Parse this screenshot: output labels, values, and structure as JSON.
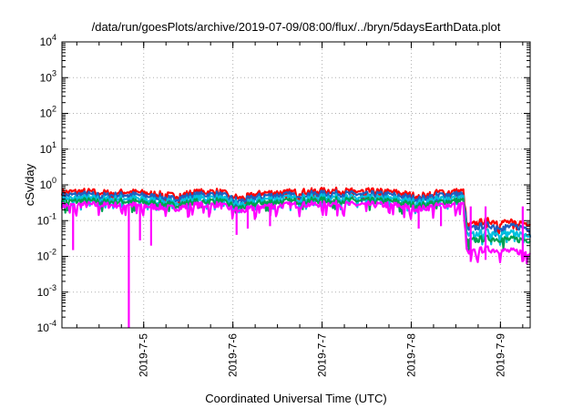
{
  "chart_data": {
    "type": "line",
    "title": "/data/run/goesPlots/archive/2019-07-09/08:00/flux/../bryn/5daysEarthData.plot",
    "xlabel": "Coordinated Universal Time (UTC)",
    "ylabel": "cSv/day",
    "y_scale": "log",
    "ylim": [
      0.0001,
      10000
    ],
    "y_ticks": [
      {
        "value": 0.0001,
        "base": "10",
        "exp": "-4"
      },
      {
        "value": 0.001,
        "base": "10",
        "exp": "-3"
      },
      {
        "value": 0.01,
        "base": "10",
        "exp": "-2"
      },
      {
        "value": 0.1,
        "base": "10",
        "exp": "-1"
      },
      {
        "value": 1,
        "base": "10",
        "exp": "0"
      },
      {
        "value": 10,
        "base": "10",
        "exp": "1"
      },
      {
        "value": 100,
        "base": "10",
        "exp": "2"
      },
      {
        "value": 1000,
        "base": "10",
        "exp": "3"
      },
      {
        "value": 10000,
        "base": "10",
        "exp": "4"
      }
    ],
    "xlim": [
      "2019-07-04T02:00",
      "2019-07-09T08:00"
    ],
    "x_ticks": [
      {
        "value": "2019-07-05T00:00",
        "label": "2019-7-5"
      },
      {
        "value": "2019-07-06T00:00",
        "label": "2019-7-6"
      },
      {
        "value": "2019-07-07T00:00",
        "label": "2019-7-7"
      },
      {
        "value": "2019-07-08T00:00",
        "label": "2019-7-8"
      },
      {
        "value": "2019-07-09T00:00",
        "label": "2019-7-9"
      }
    ],
    "grid": true,
    "x": [
      "2019-07-04T02:00",
      "2019-07-04T08:00",
      "2019-07-04T14:00",
      "2019-07-04T20:00",
      "2019-07-05T02:00",
      "2019-07-05T08:00",
      "2019-07-05T14:00",
      "2019-07-05T20:00",
      "2019-07-06T02:00",
      "2019-07-06T08:00",
      "2019-07-06T14:00",
      "2019-07-06T20:00",
      "2019-07-07T02:00",
      "2019-07-07T08:00",
      "2019-07-07T14:00",
      "2019-07-07T20:00",
      "2019-07-08T02:00",
      "2019-07-08T08:00",
      "2019-07-08T14:00",
      "2019-07-08T15:00",
      "2019-07-08T20:00",
      "2019-07-09T02:00",
      "2019-07-09T08:00"
    ],
    "series": [
      {
        "color": "#ff0000",
        "values": [
          0.62,
          0.66,
          0.6,
          0.64,
          0.58,
          0.5,
          0.62,
          0.66,
          0.42,
          0.6,
          0.62,
          0.65,
          0.7,
          0.66,
          0.66,
          0.62,
          0.48,
          0.64,
          0.66,
          0.07,
          0.1,
          0.09,
          0.085
        ]
      },
      {
        "color": "#1f5fbf",
        "values": [
          0.5,
          0.55,
          0.5,
          0.54,
          0.48,
          0.41,
          0.52,
          0.55,
          0.35,
          0.5,
          0.52,
          0.55,
          0.58,
          0.55,
          0.55,
          0.52,
          0.4,
          0.53,
          0.55,
          0.055,
          0.075,
          0.068,
          0.064
        ]
      },
      {
        "color": "#00c0e0",
        "values": [
          0.4,
          0.44,
          0.4,
          0.43,
          0.38,
          0.33,
          0.42,
          0.44,
          0.28,
          0.4,
          0.42,
          0.44,
          0.46,
          0.44,
          0.44,
          0.41,
          0.32,
          0.42,
          0.44,
          0.038,
          0.048,
          0.044,
          0.042
        ]
      },
      {
        "color": "#00a050",
        "values": [
          0.33,
          0.36,
          0.33,
          0.35,
          0.31,
          0.27,
          0.34,
          0.36,
          0.23,
          0.33,
          0.34,
          0.36,
          0.38,
          0.36,
          0.36,
          0.34,
          0.26,
          0.34,
          0.36,
          0.026,
          0.032,
          0.03,
          0.029
        ]
      },
      {
        "color": "#ff00ff",
        "values": [
          0.26,
          0.28,
          0.27,
          0.28,
          0.25,
          0.22,
          0.27,
          0.28,
          0.18,
          0.26,
          0.27,
          0.28,
          0.3,
          0.28,
          0.28,
          0.27,
          0.21,
          0.27,
          0.28,
          0.012,
          0.016,
          0.014,
          0.013
        ]
      }
    ],
    "spikes": [
      {
        "x": "2019-07-04T05:00",
        "value": 0.015
      },
      {
        "x": "2019-07-04T20:00",
        "value": 0.0001
      },
      {
        "x": "2019-07-04T23:00",
        "value": 0.028
      },
      {
        "x": "2019-07-05T02:00",
        "value": 0.02
      },
      {
        "x": "2019-07-06T01:00",
        "value": 0.04
      },
      {
        "x": "2019-07-06T04:00",
        "value": 0.06
      },
      {
        "x": "2019-07-06T10:00",
        "value": 0.07
      },
      {
        "x": "2019-07-08T02:00",
        "value": 0.06
      },
      {
        "x": "2019-07-08T08:00",
        "value": 0.07
      },
      {
        "x": "2019-07-08T16:00",
        "value": 0.007
      },
      {
        "x": "2019-07-08T20:00",
        "value": 0.008
      },
      {
        "x": "2019-07-09T06:00",
        "value": 0.007
      }
    ]
  }
}
